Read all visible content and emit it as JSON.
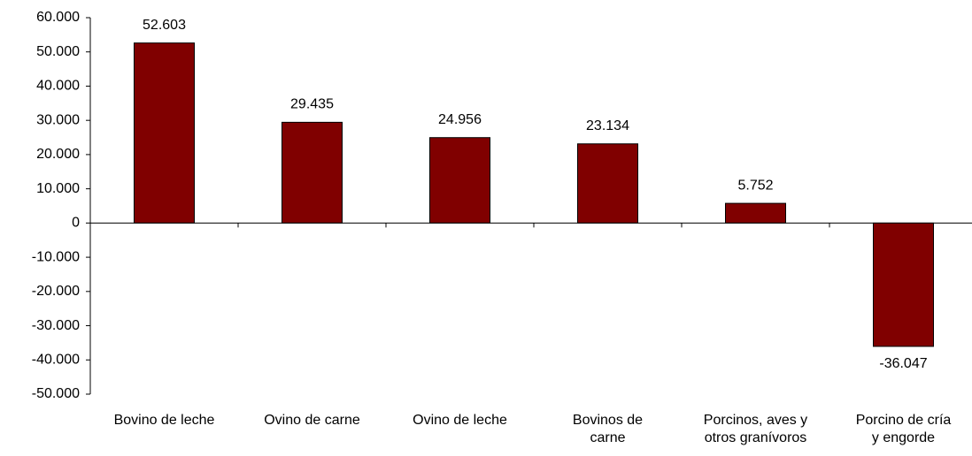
{
  "chart_data": {
    "type": "bar",
    "categories": [
      "Bovino de leche",
      "Ovino de carne",
      "Ovino de leche",
      "Bovinos de\ncarne",
      "Porcinos, aves y\notros granívoros",
      "Porcino de cría\ny engorde"
    ],
    "values": [
      52603,
      29435,
      24956,
      23134,
      5752,
      -36047
    ],
    "value_labels": [
      "52.603",
      "29.435",
      "24.956",
      "23.134",
      "5.752",
      "-36.047"
    ],
    "color": "#800000",
    "ylim": [
      -50000,
      60000
    ],
    "yticks": [
      {
        "value": -50000,
        "label": "-50.000"
      },
      {
        "value": -40000,
        "label": "-40.000"
      },
      {
        "value": -30000,
        "label": "-30.000"
      },
      {
        "value": -20000,
        "label": "-20.000"
      },
      {
        "value": -10000,
        "label": "-10.000"
      },
      0,
      {
        "value": 10000,
        "label": "10.000"
      },
      {
        "value": 20000,
        "label": "20.000"
      },
      {
        "value": 30000,
        "label": "30.000"
      },
      {
        "value": 40000,
        "label": "40.000"
      },
      {
        "value": 50000,
        "label": "50.000"
      },
      {
        "value": 60000,
        "label": "60.000"
      }
    ],
    "grid": false
  }
}
